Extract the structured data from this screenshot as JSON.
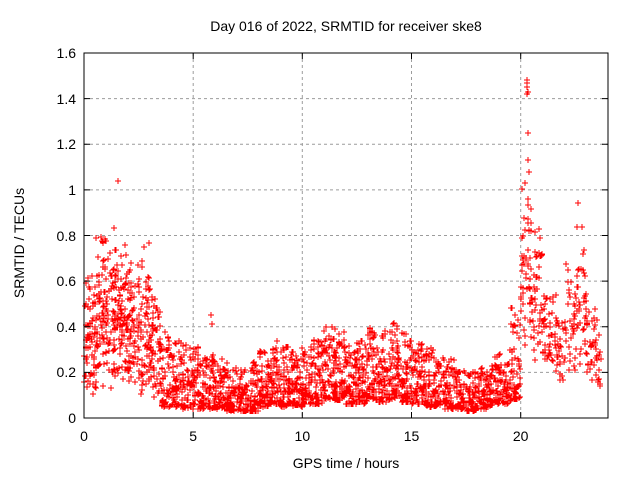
{
  "title": "Day 016 of 2022, SRMTID for receiver ske8",
  "colors": {
    "marker": "#ff0000",
    "grid": "#9c9c9c",
    "axis": "#000000",
    "background": "#ffffff",
    "text": "#000000"
  },
  "chart_data": {
    "type": "scatter",
    "title": "Day 016 of 2022, SRMTID for receiver ske8",
    "xlabel": "GPS time / hours",
    "ylabel": "SRMTID / TECUs",
    "xlim": [
      0,
      24
    ],
    "ylim": [
      0,
      1.6
    ],
    "xticks": {
      "values": [
        0,
        5,
        10,
        15,
        20
      ],
      "labels": [
        "0",
        "5",
        "10",
        "15",
        "20"
      ]
    },
    "yticks": {
      "values": [
        0,
        0.2,
        0.4,
        0.6,
        0.8,
        1.0,
        1.2,
        1.4,
        1.6
      ],
      "labels": [
        "0",
        "0.2",
        "0.4",
        "0.6",
        "0.8",
        "1",
        "1.2",
        "1.4",
        "1.6"
      ]
    },
    "grid": true,
    "grid_style": "dashed",
    "legend": "none",
    "marker": {
      "shape": "plus",
      "color": "#ff0000",
      "size": 7
    },
    "series_name": "SRMTID",
    "profile_format": [
      "t_start_h",
      "t_end_h",
      "n_points",
      "y_min",
      "y_max",
      "dist 0=low-skewed 1=triangular"
    ],
    "density_profile": [
      [
        0,
        0.5,
        60,
        0.1,
        0.7,
        1
      ],
      [
        0.5,
        1,
        70,
        0.1,
        0.92,
        1
      ],
      [
        1,
        1.5,
        70,
        0.12,
        0.93,
        1
      ],
      [
        1.5,
        2,
        70,
        0.12,
        0.85,
        1
      ],
      [
        2,
        2.5,
        65,
        0.1,
        0.78,
        1
      ],
      [
        2.5,
        3,
        65,
        0.1,
        0.8,
        1
      ],
      [
        3,
        3.5,
        60,
        0.08,
        0.6,
        1
      ],
      [
        3.5,
        4,
        55,
        0.05,
        0.4,
        0
      ],
      [
        4,
        4.5,
        55,
        0.05,
        0.34,
        0
      ],
      [
        4.5,
        5,
        55,
        0.04,
        0.32,
        0
      ],
      [
        5,
        5.5,
        55,
        0.04,
        0.32,
        0
      ],
      [
        5.5,
        6,
        55,
        0.04,
        0.3,
        0
      ],
      [
        6,
        6.5,
        55,
        0.04,
        0.27,
        0
      ],
      [
        6.5,
        7,
        55,
        0.03,
        0.24,
        0
      ],
      [
        7,
        7.5,
        55,
        0.03,
        0.21,
        0
      ],
      [
        7.5,
        8,
        55,
        0.03,
        0.25,
        0
      ],
      [
        8,
        8.5,
        58,
        0.05,
        0.3,
        0
      ],
      [
        8.5,
        9,
        60,
        0.06,
        0.34,
        0
      ],
      [
        9,
        9.5,
        60,
        0.05,
        0.32,
        0
      ],
      [
        9.5,
        10,
        62,
        0.05,
        0.31,
        0
      ],
      [
        10,
        10.5,
        62,
        0.06,
        0.32,
        0
      ],
      [
        10.5,
        11,
        62,
        0.06,
        0.34,
        0
      ],
      [
        11,
        11.5,
        65,
        0.08,
        0.4,
        0
      ],
      [
        11.5,
        12,
        65,
        0.08,
        0.38,
        0
      ],
      [
        12,
        12.5,
        62,
        0.06,
        0.32,
        0
      ],
      [
        12.5,
        13,
        62,
        0.06,
        0.34,
        0
      ],
      [
        13,
        13.5,
        62,
        0.08,
        0.4,
        0
      ],
      [
        13.5,
        14,
        62,
        0.07,
        0.38,
        0
      ],
      [
        14,
        14.5,
        62,
        0.08,
        0.42,
        0
      ],
      [
        14.5,
        15,
        62,
        0.07,
        0.38,
        0
      ],
      [
        15,
        15.5,
        60,
        0.06,
        0.34,
        0
      ],
      [
        15.5,
        16,
        58,
        0.05,
        0.31,
        0
      ],
      [
        16,
        16.5,
        58,
        0.05,
        0.28,
        0
      ],
      [
        16.5,
        17,
        55,
        0.04,
        0.26,
        0
      ],
      [
        17,
        17.5,
        55,
        0.04,
        0.22,
        0
      ],
      [
        17.5,
        18,
        55,
        0.03,
        0.21,
        0
      ],
      [
        18,
        18.5,
        55,
        0.04,
        0.23,
        0
      ],
      [
        18.5,
        19,
        55,
        0.05,
        0.27,
        0
      ],
      [
        19,
        19.5,
        58,
        0.06,
        0.31,
        0
      ],
      [
        19.5,
        20,
        60,
        0.08,
        0.5,
        0
      ],
      [
        20,
        20.25,
        24,
        0.3,
        1.1,
        1
      ],
      [
        20.25,
        20.5,
        28,
        0.3,
        1.15,
        1
      ],
      [
        20.5,
        21,
        45,
        0.25,
        0.88,
        1
      ],
      [
        21,
        21.5,
        38,
        0.18,
        0.62,
        1
      ],
      [
        21.5,
        22,
        34,
        0.15,
        0.56,
        1
      ],
      [
        22,
        22.5,
        34,
        0.2,
        0.72,
        1
      ],
      [
        22.5,
        23,
        40,
        0.22,
        0.95,
        1
      ],
      [
        23,
        23.5,
        34,
        0.12,
        0.55,
        1
      ],
      [
        23.5,
        23.7,
        10,
        0.13,
        0.4,
        1
      ]
    ],
    "outlier_points": [
      [
        1.55,
        1.04
      ],
      [
        5.8,
        0.45
      ],
      [
        5.87,
        0.41
      ],
      [
        20.28,
        1.48
      ],
      [
        20.31,
        1.47
      ],
      [
        20.29,
        1.45
      ],
      [
        20.33,
        1.43
      ],
      [
        20.3,
        1.42
      ],
      [
        20.32,
        1.25
      ],
      [
        20.34,
        1.13
      ],
      [
        20.36,
        1.08
      ]
    ]
  }
}
